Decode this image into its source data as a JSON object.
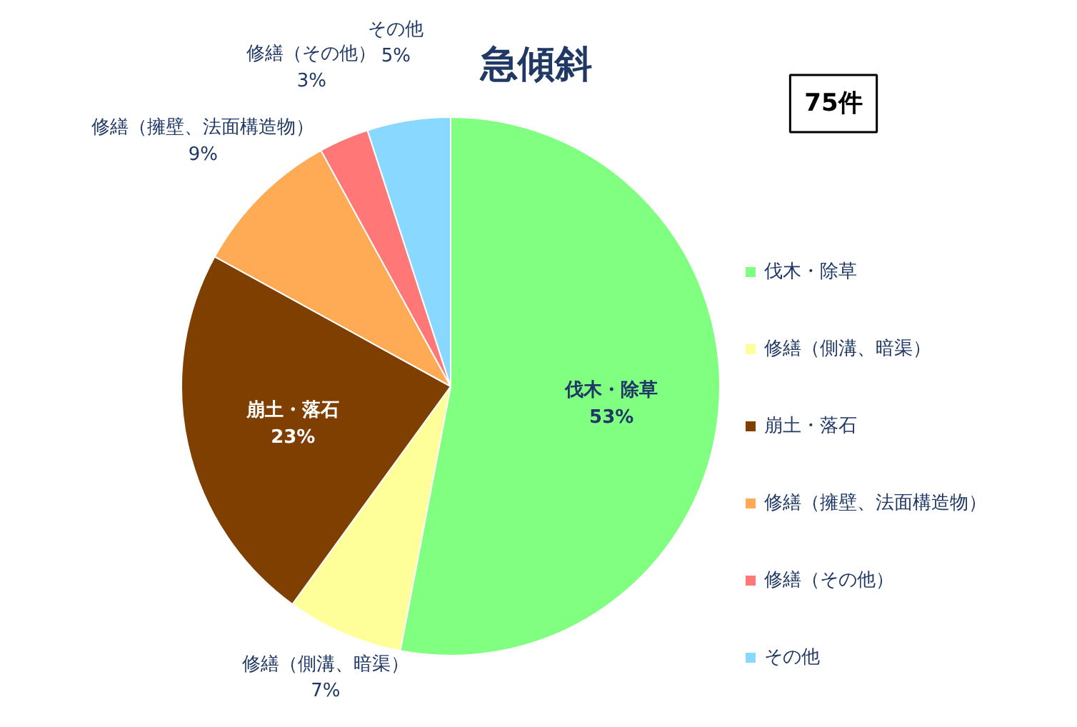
{
  "chart_data": {
    "type": "pie",
    "title": "急傾斜",
    "categories": [
      "伐木・除草",
      "修繕（側溝、暗渠）",
      "崩土・落石",
      "修繕（擁壁、法面構造物）",
      "修繕（その他）",
      "その他"
    ],
    "values": [
      53,
      7,
      23,
      9,
      3,
      5
    ],
    "colors": [
      "#80ff80",
      "#ffff99",
      "#7f3f00",
      "#ffaa55",
      "#ff7777",
      "#88d8ff"
    ],
    "annotations": [
      "75件"
    ],
    "value_labels": [
      "53%",
      "7%",
      "23%",
      "9%",
      "3%",
      "5%"
    ],
    "legend": "right"
  }
}
